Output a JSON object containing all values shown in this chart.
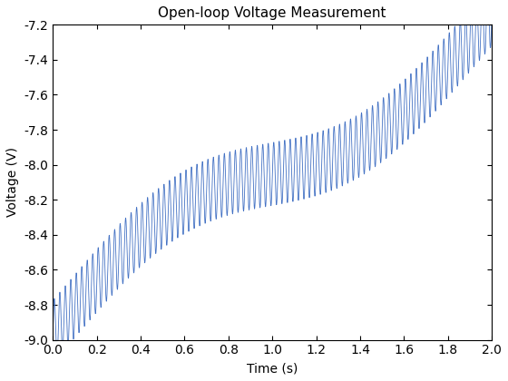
{
  "title": "Open-loop Voltage Measurement",
  "xlabel": "Time (s)",
  "ylabel": "Voltage (V)",
  "line_color": "#4472c4",
  "line_width": 0.6,
  "xlim": [
    0,
    2
  ],
  "ylim": [
    -9,
    -7.2
  ],
  "xticks": [
    0,
    0.2,
    0.4,
    0.6,
    0.8,
    1.0,
    1.2,
    1.4,
    1.6,
    1.8,
    2.0
  ],
  "yticks": [
    -9.0,
    -8.8,
    -8.6,
    -8.4,
    -8.2,
    -8.0,
    -7.8,
    -7.6,
    -7.4,
    -7.2
  ],
  "t_start": 0,
  "t_end": 2,
  "n_points": 8000,
  "osc_freq": 40,
  "osc_amp": 0.18,
  "background_color": "#ffffff",
  "title_fontsize": 11,
  "label_fontsize": 10,
  "tick_fontsize": 10
}
